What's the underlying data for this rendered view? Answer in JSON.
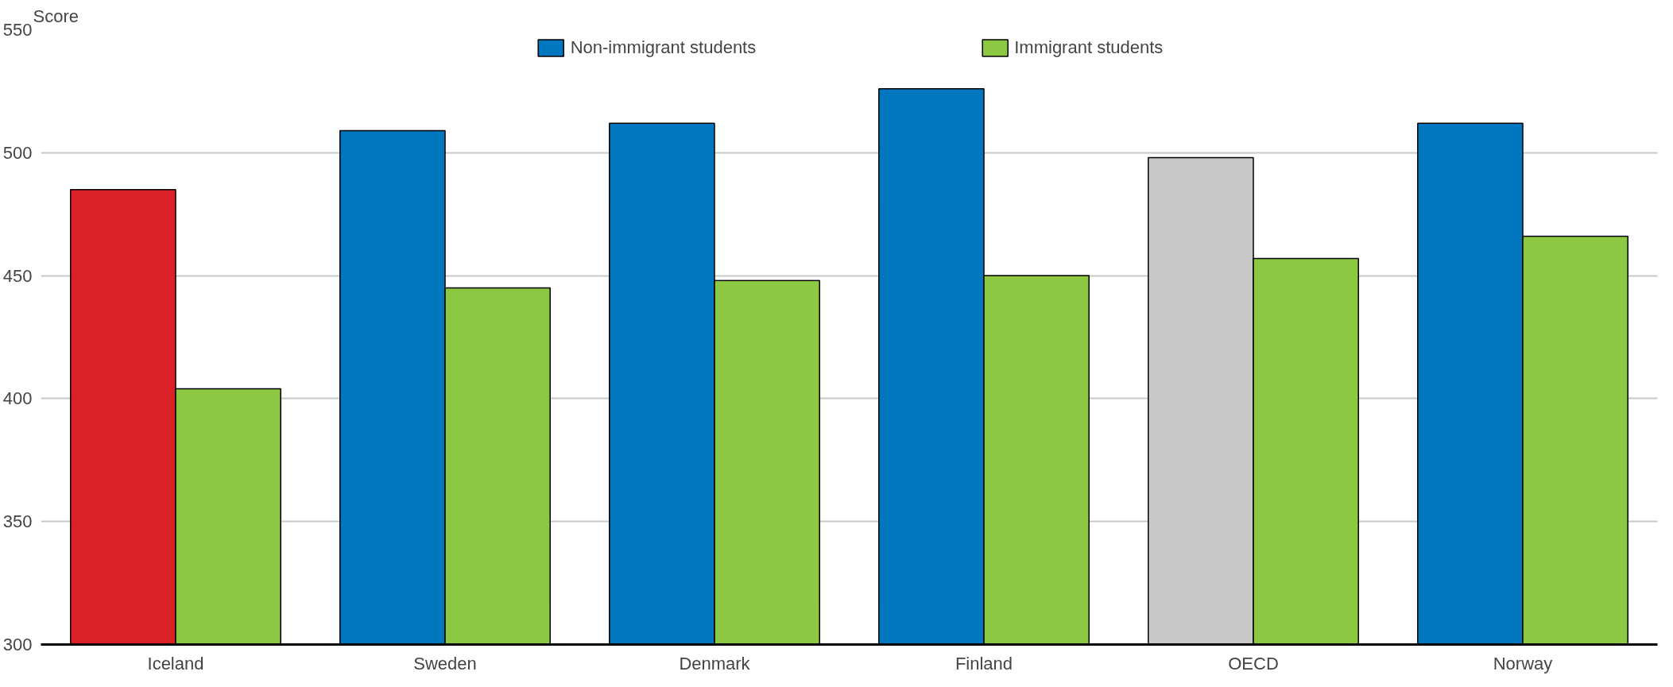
{
  "chart_data": {
    "type": "bar",
    "ylabel": "Score",
    "categories": [
      "Iceland",
      "Sweden",
      "Denmark",
      "Finland",
      "OECD",
      "Norway"
    ],
    "series": [
      {
        "name": "Non-immigrant students",
        "color": "#0077bf",
        "colors": [
          "#da2128",
          "#0077bf",
          "#0077bf",
          "#0077bf",
          "#c8c8c8",
          "#0077bf"
        ],
        "values": [
          485,
          509,
          512,
          526,
          498,
          512
        ]
      },
      {
        "name": "Immigrant students",
        "color": "#8cc841",
        "values": [
          404,
          445,
          448,
          450,
          457,
          466
        ]
      }
    ],
    "ylim": [
      300,
      550
    ],
    "yticks": [
      300,
      350,
      400,
      450,
      500,
      550
    ],
    "grid": "y",
    "legend": "top"
  }
}
